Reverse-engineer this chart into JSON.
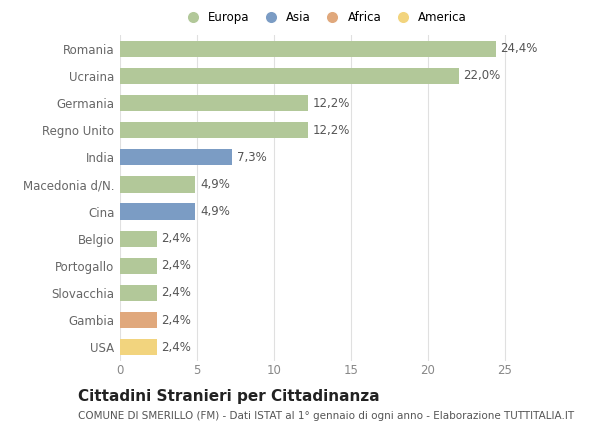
{
  "categories": [
    "Romania",
    "Ucraina",
    "Germania",
    "Regno Unito",
    "India",
    "Macedonia d/N.",
    "Cina",
    "Belgio",
    "Portogallo",
    "Slovacchia",
    "Gambia",
    "USA"
  ],
  "values": [
    24.4,
    22.0,
    12.2,
    12.2,
    7.3,
    4.9,
    4.9,
    2.4,
    2.4,
    2.4,
    2.4,
    2.4
  ],
  "labels": [
    "24,4%",
    "22,0%",
    "12,2%",
    "12,2%",
    "7,3%",
    "4,9%",
    "4,9%",
    "2,4%",
    "2,4%",
    "2,4%",
    "2,4%",
    "2,4%"
  ],
  "colors": [
    "#b2c899",
    "#b2c899",
    "#b2c899",
    "#b2c899",
    "#7b9cc4",
    "#b2c899",
    "#7b9cc4",
    "#b2c899",
    "#b2c899",
    "#b2c899",
    "#e0a87c",
    "#f2d47e"
  ],
  "legend_labels": [
    "Europa",
    "Asia",
    "Africa",
    "America"
  ],
  "legend_colors": [
    "#b2c899",
    "#7b9cc4",
    "#e0a87c",
    "#f2d47e"
  ],
  "title": "Cittadini Stranieri per Cittadinanza",
  "subtitle": "COMUNE DI SMERILLO (FM) - Dati ISTAT al 1° gennaio di ogni anno - Elaborazione TUTTITALIA.IT",
  "xlim": [
    0,
    26.5
  ],
  "xticks": [
    0,
    5,
    10,
    15,
    20,
    25
  ],
  "background_color": "#ffffff",
  "axes_bg_color": "#ffffff",
  "grid_color": "#e0e0e0",
  "bar_height": 0.6,
  "title_fontsize": 11,
  "subtitle_fontsize": 7.5,
  "label_fontsize": 8.5,
  "tick_fontsize": 8.5,
  "ylabel_color": "#666666",
  "xlabel_color": "#888888",
  "label_color": "#555555"
}
